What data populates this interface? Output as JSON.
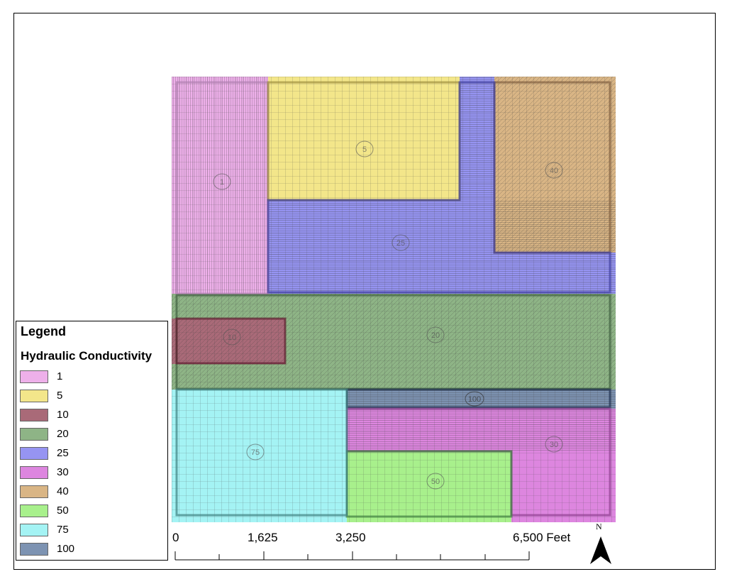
{
  "legend": {
    "title": "Legend",
    "subtitle": "Hydraulic Conductivity",
    "items": [
      {
        "label": "1",
        "color": "#eeb0ea"
      },
      {
        "label": "5",
        "color": "#f3e68a"
      },
      {
        "label": "10",
        "color": "#a96a78"
      },
      {
        "label": "20",
        "color": "#8eb486"
      },
      {
        "label": "25",
        "color": "#9694f2"
      },
      {
        "label": "30",
        "color": "#dd86df"
      },
      {
        "label": "40",
        "color": "#d9b585"
      },
      {
        "label": "50",
        "color": "#a8f08c"
      },
      {
        "label": "75",
        "color": "#a4f3f4"
      },
      {
        "label": "100",
        "color": "#7d93b2"
      }
    ]
  },
  "map": {
    "zone_labels": [
      "1",
      "5",
      "40",
      "25",
      "10",
      "20",
      "100",
      "75",
      "30",
      "50"
    ]
  },
  "scale_bar": {
    "labels": [
      "0",
      "1,625",
      "3,250",
      "6,500 Feet"
    ]
  },
  "north_arrow": {
    "label": "N",
    "icon": "north-arrow-icon"
  }
}
